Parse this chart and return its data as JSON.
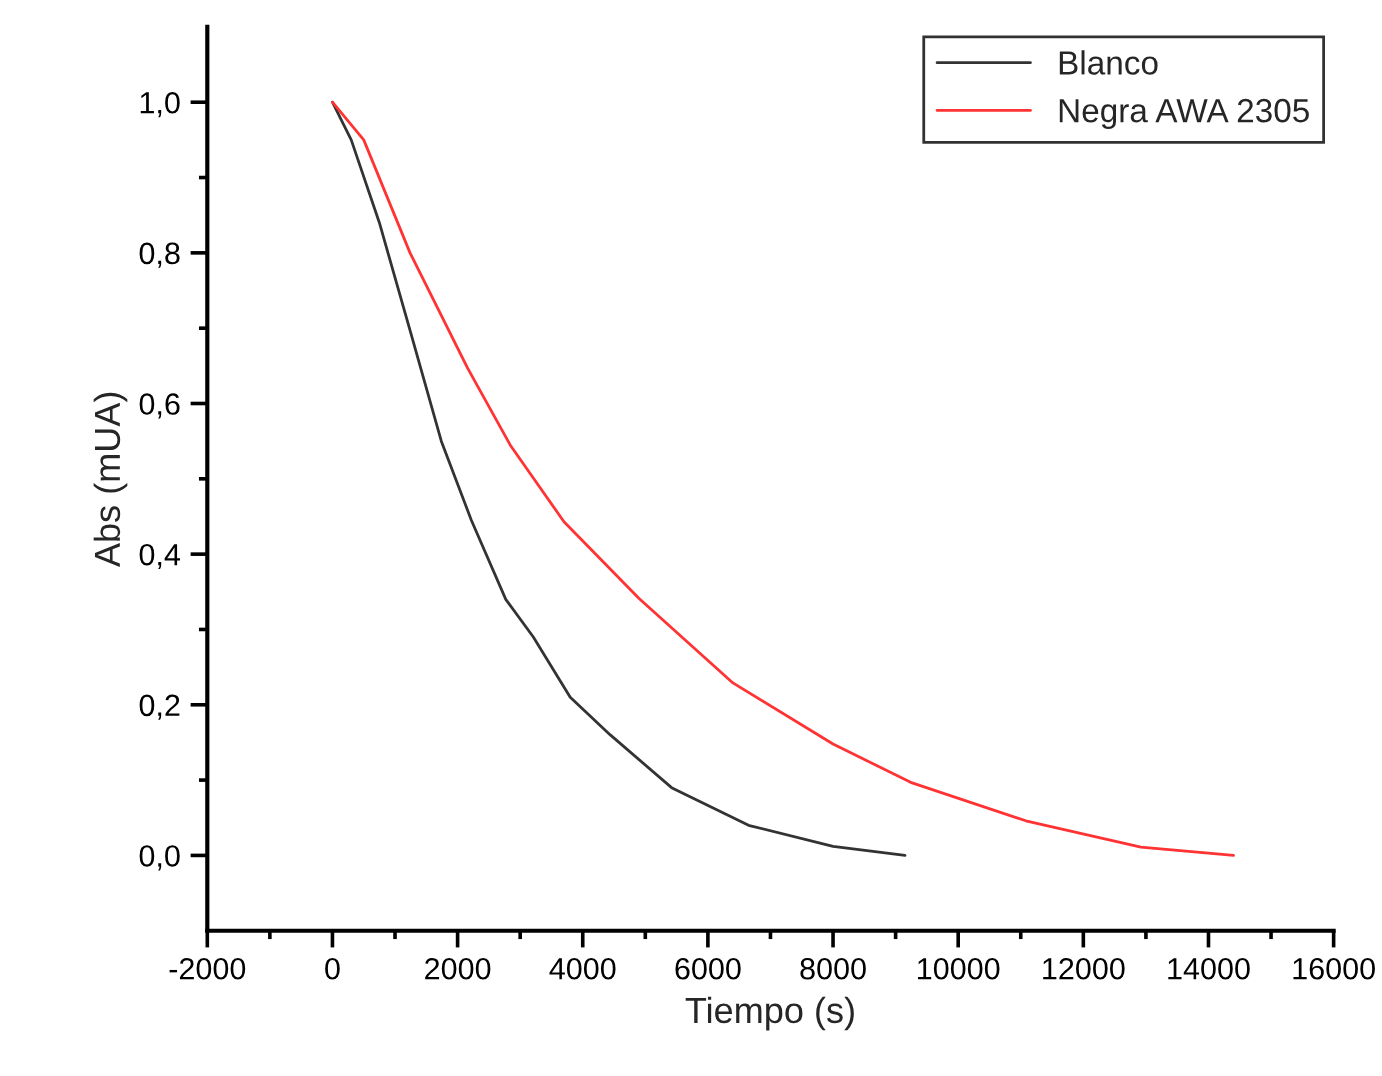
{
  "chart_data": {
    "type": "line",
    "xlabel": "Tiempo (s)",
    "ylabel": "Abs (mUA)",
    "xlim": [
      -2000,
      16000
    ],
    "ylim": [
      -0.1,
      1.1
    ],
    "xticks": [
      -2000,
      0,
      2000,
      4000,
      6000,
      8000,
      10000,
      12000,
      14000,
      16000
    ],
    "yticks": [
      {
        "value": 0.0,
        "label": "0,0"
      },
      {
        "value": 0.2,
        "label": "0,2"
      },
      {
        "value": 0.4,
        "label": "0,4"
      },
      {
        "value": 0.6,
        "label": "0,6"
      },
      {
        "value": 0.8,
        "label": "0,8"
      },
      {
        "value": 1.0,
        "label": "1,0"
      }
    ],
    "legend": "top right",
    "grid": false,
    "series": [
      {
        "name": "Blanco",
        "color": "#333333",
        "x": [
          0,
          300,
          750,
          1230,
          1740,
          2220,
          2770,
          3210,
          3800,
          4440,
          5420,
          6650,
          8000,
          9150
        ],
        "values": [
          1.0,
          0.95,
          0.84,
          0.7,
          0.55,
          0.445,
          0.34,
          0.29,
          0.21,
          0.16,
          0.09,
          0.04,
          0.012,
          0.0
        ]
      },
      {
        "name": "Negra AWA 2305",
        "color": "#ff3333",
        "x": [
          0,
          500,
          1240,
          2160,
          2840,
          3700,
          4900,
          6400,
          8000,
          9240,
          11080,
          12920,
          14400
        ],
        "values": [
          1.0,
          0.95,
          0.8,
          0.647,
          0.545,
          0.443,
          0.341,
          0.229,
          0.148,
          0.097,
          0.046,
          0.011,
          0.0
        ]
      }
    ]
  }
}
